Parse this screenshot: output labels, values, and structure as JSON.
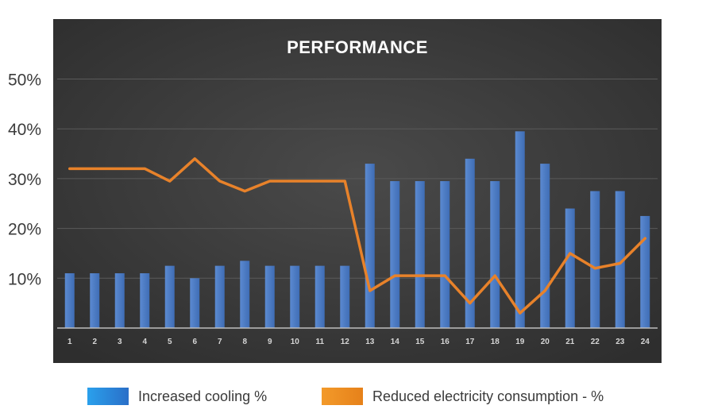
{
  "chart_data": {
    "type": "bar",
    "title": "PERFORMANCE",
    "xlabel": "",
    "ylabel": "",
    "ylim": [
      0,
      50
    ],
    "grid": true,
    "legend_position": "bottom",
    "y_ticks": [
      10,
      20,
      30,
      40,
      50
    ],
    "y_tick_labels": [
      "10%",
      "20%",
      "30%",
      "40%",
      "50%"
    ],
    "categories": [
      "1",
      "2",
      "3",
      "4",
      "5",
      "6",
      "7",
      "8",
      "9",
      "10",
      "11",
      "12",
      "13",
      "14",
      "15",
      "16",
      "17",
      "18",
      "19",
      "20",
      "21",
      "22",
      "23",
      "24"
    ],
    "series": [
      {
        "name": "Increased cooling %",
        "type": "bar",
        "color": "#4a7cc4",
        "values": [
          11,
          11,
          11,
          11,
          12.5,
          10,
          12.5,
          13.5,
          12.5,
          12.5,
          12.5,
          12.5,
          33,
          29.5,
          29.5,
          29.5,
          34,
          29.5,
          39.5,
          33,
          24,
          27.5,
          27.5,
          22.5
        ]
      },
      {
        "name": "Reduced electricity consumption - %",
        "type": "line",
        "color": "#e8822a",
        "values": [
          32,
          32,
          32,
          32,
          29.5,
          34,
          29.5,
          27.5,
          29.5,
          29.5,
          29.5,
          29.5,
          7.5,
          10.5,
          10.5,
          10.5,
          5,
          10.5,
          3,
          7.5,
          15,
          12,
          13,
          18
        ]
      }
    ]
  },
  "colors": {
    "plot_background": "#3d3d3d",
    "legend_cooling": "#1f8fe0",
    "legend_electricity": "#f08a1e"
  }
}
